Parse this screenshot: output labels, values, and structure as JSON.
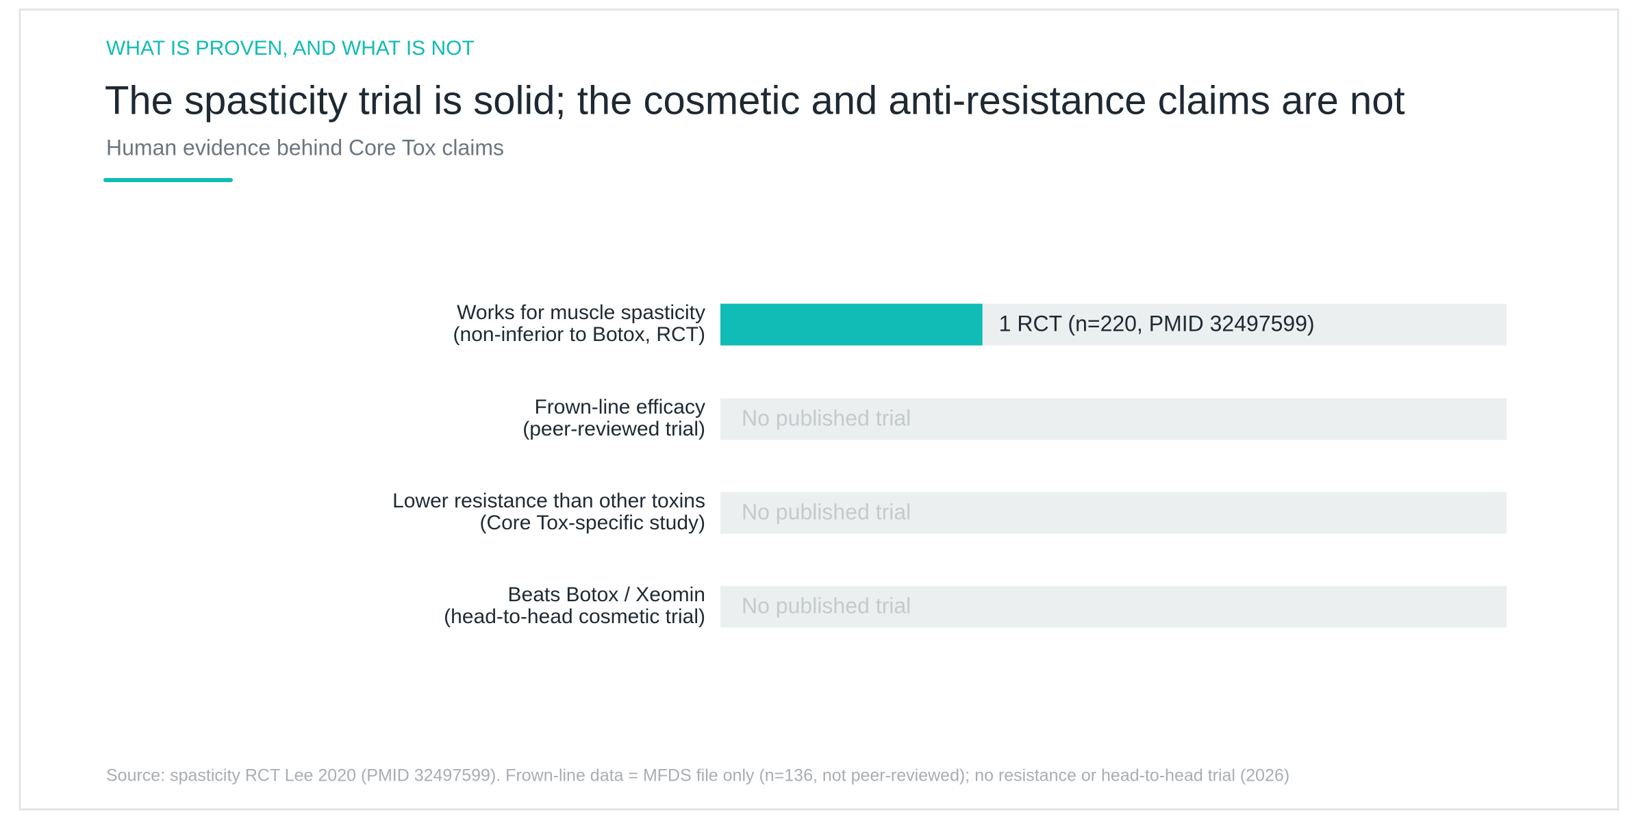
{
  "chart_data": {
    "type": "bar",
    "eyebrow": "WHAT IS PROVEN, AND WHAT IS NOT",
    "title": "The spasticity trial is solid; the cosmetic and anti-resistance claims are not",
    "subtitle": "Human evidence behind Core Tox claims",
    "categories": [
      [
        "Works for muscle spasticity",
        "(non-inferior to Botox, RCT)"
      ],
      [
        "Frown-line efficacy",
        "(peer-reviewed trial)"
      ],
      [
        "Lower resistance than other toxins",
        "(Core Tox-specific study)"
      ],
      [
        "Beats Botox / Xeomin",
        "(head-to-head cosmetic trial)"
      ]
    ],
    "values": [
      1,
      0,
      0,
      0
    ],
    "value_labels": [
      "1 RCT (n=220, PMID 32497599)",
      "No published trial",
      "No published trial",
      "No published trial"
    ],
    "xlim": [
      0,
      3
    ],
    "color": "#10bcb6",
    "source": "Source: spasticity RCT Lee 2020 (PMID 32497599). Frown-line data = MFDS file only (n=136, not peer-reviewed); no resistance or head-to-head trial (2026)"
  }
}
